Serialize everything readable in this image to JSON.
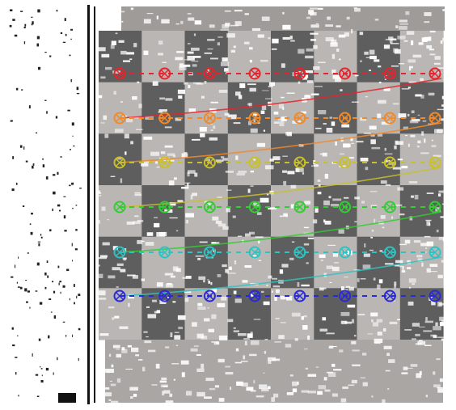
{
  "image": {
    "subject": "chessboard-calibration-detected-corners",
    "background": "#ffffff"
  },
  "board": {
    "rows": 6,
    "cols": 8,
    "dark_color": "#5f5e5e",
    "light_color": "#b9b6b3",
    "noise_color": "#ffffff",
    "frame_color": "#111111"
  },
  "corner_rows": [
    {
      "name": "row-1",
      "color": "#e8232b"
    },
    {
      "name": "row-2",
      "color": "#f08a2a"
    },
    {
      "name": "row-3",
      "color": "#c9c02a"
    },
    {
      "name": "row-4",
      "color": "#33cc33"
    },
    {
      "name": "row-5",
      "color": "#2ec3c3"
    },
    {
      "name": "row-6",
      "color": "#2a2ad6"
    }
  ]
}
